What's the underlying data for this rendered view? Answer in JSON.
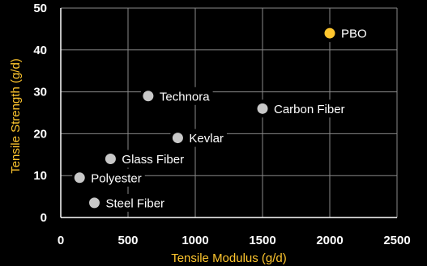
{
  "chart_data": {
    "type": "scatter",
    "xlabel": "Tensile Modulus (g/d)",
    "ylabel": "Tensile Strength (g/d)",
    "xlim": [
      0,
      2500
    ],
    "ylim": [
      0,
      50
    ],
    "x_ticks": [
      0,
      500,
      1000,
      1500,
      2000,
      2500
    ],
    "y_ticks": [
      0,
      10,
      20,
      30,
      40,
      50
    ],
    "grid": true,
    "points": [
      {
        "label": "PBO",
        "x": 2000,
        "y": 44,
        "color": "#FFC62E"
      },
      {
        "label": "Technora",
        "x": 650,
        "y": 29,
        "color": "#C8C8C8"
      },
      {
        "label": "Carbon Fiber",
        "x": 1500,
        "y": 26,
        "color": "#C8C8C8"
      },
      {
        "label": "Kevlar",
        "x": 870,
        "y": 19,
        "color": "#C8C8C8"
      },
      {
        "label": "Glass Fiber",
        "x": 370,
        "y": 14,
        "color": "#C8C8C8"
      },
      {
        "label": "Polyester",
        "x": 140,
        "y": 9.5,
        "color": "#C8C8C8"
      },
      {
        "label": "Steel Fiber",
        "x": 250,
        "y": 3.5,
        "color": "#C8C8C8"
      }
    ],
    "colors": {
      "axis_title": "#FFC62E",
      "grid": "#8a8a8a",
      "background": "#000000"
    }
  }
}
